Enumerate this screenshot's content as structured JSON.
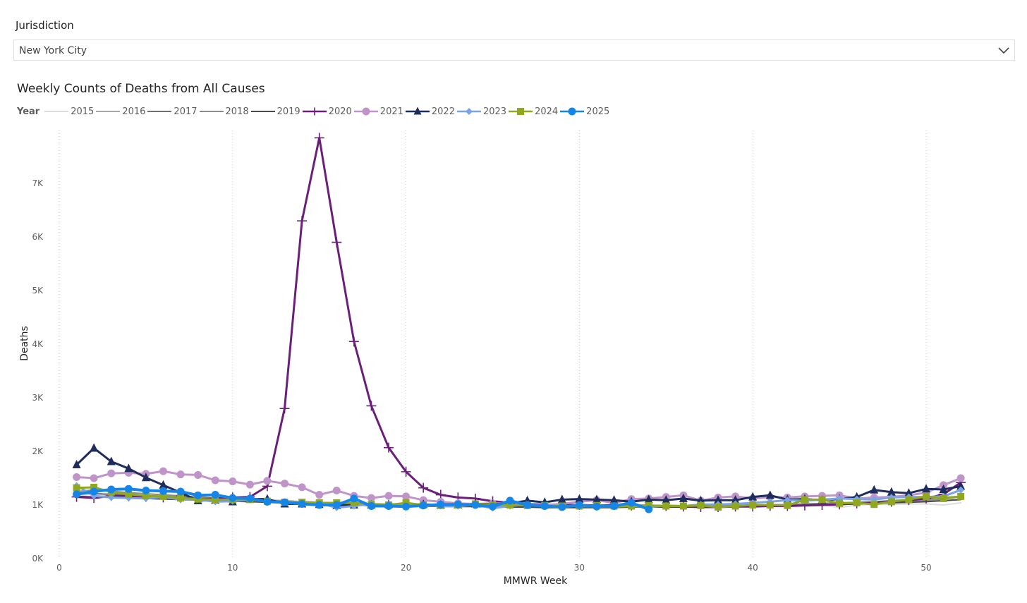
{
  "filter": {
    "label": "Jurisdiction",
    "value": "New York City",
    "chevron_icon": "chevron-down-icon"
  },
  "chart_data": {
    "type": "line",
    "title": "Weekly Counts of Deaths from All Causes",
    "legend_title": "Year",
    "legend_placement": "top-left",
    "xlabel": "MMWR Week",
    "ylabel": "Deaths",
    "xlim": [
      0,
      54
    ],
    "ylim": [
      0,
      8000
    ],
    "x_ticks": [
      0,
      10,
      20,
      30,
      40,
      50
    ],
    "x_tick_labels": [
      "0",
      "10",
      "20",
      "30",
      "40",
      "50"
    ],
    "y_ticks": [
      0,
      1000,
      2000,
      3000,
      4000,
      5000,
      6000,
      7000
    ],
    "y_tick_labels": [
      "0K",
      "1K",
      "2K",
      "3K",
      "4K",
      "5K",
      "6K",
      "7K"
    ],
    "vertical_gridlines": "dotted",
    "x": [
      1,
      2,
      3,
      4,
      5,
      6,
      7,
      8,
      9,
      10,
      11,
      12,
      13,
      14,
      15,
      16,
      17,
      18,
      19,
      20,
      21,
      22,
      23,
      24,
      25,
      26,
      27,
      28,
      29,
      30,
      31,
      32,
      33,
      34,
      35,
      36,
      37,
      38,
      39,
      40,
      41,
      42,
      43,
      44,
      45,
      46,
      47,
      48,
      49,
      50,
      51,
      52
    ],
    "series": [
      {
        "name": "2015",
        "color": "#dcdcdc",
        "marker": "none",
        "width": 2,
        "values": [
          1180,
          1200,
          1170,
          1160,
          1150,
          1140,
          1130,
          1110,
          1100,
          1090,
          1080,
          1060,
          1050,
          1040,
          1030,
          1020,
          1010,
          1000,
          990,
          990,
          980,
          980,
          970,
          970,
          960,
          960,
          960,
          950,
          950,
          950,
          950,
          950,
          960,
          960,
          960,
          960,
          970,
          970,
          970,
          980,
          980,
          990,
          990,
          1000,
          950,
          1000,
          1010,
          1010,
          1020,
          1020,
          1000,
          1040
        ]
      },
      {
        "name": "2016",
        "color": "#a8a8a8",
        "marker": "none",
        "width": 2,
        "values": [
          1200,
          1220,
          1190,
          1170,
          1160,
          1150,
          1140,
          1120,
          1110,
          1100,
          1090,
          1070,
          1060,
          1050,
          1040,
          1030,
          1020,
          1010,
          1000,
          1000,
          990,
          990,
          980,
          980,
          970,
          970,
          970,
          960,
          960,
          960,
          960,
          960,
          970,
          970,
          970,
          980,
          980,
          980,
          990,
          990,
          1000,
          1000,
          1010,
          1010,
          1020,
          1030,
          1040,
          1050,
          1060,
          1070,
          1080,
          1100
        ]
      },
      {
        "name": "2017",
        "color": "#707070",
        "marker": "none",
        "width": 2,
        "values": [
          1230,
          1210,
          1200,
          1190,
          1170,
          1160,
          1150,
          1130,
          1120,
          1110,
          1100,
          1080,
          1070,
          1060,
          1050,
          1040,
          1030,
          1020,
          1010,
          1010,
          1000,
          990,
          990,
          980,
          980,
          970,
          970,
          970,
          960,
          960,
          960,
          960,
          970,
          970,
          970,
          980,
          980,
          990,
          990,
          1000,
          1000,
          1010,
          1020,
          1030,
          1040,
          1050,
          1060,
          1080,
          1100,
          1120,
          1140,
          1160
        ]
      },
      {
        "name": "2018",
        "color": "#8c8c8c",
        "marker": "none",
        "width": 2,
        "values": [
          1250,
          1280,
          1260,
          1230,
          1210,
          1190,
          1170,
          1150,
          1130,
          1120,
          1100,
          1090,
          1080,
          1060,
          1050,
          1040,
          1030,
          1020,
          1010,
          1000,
          1000,
          990,
          990,
          980,
          980,
          970,
          970,
          970,
          970,
          960,
          960,
          960,
          970,
          970,
          970,
          970,
          980,
          980,
          990,
          990,
          1000,
          1010,
          1010,
          1020,
          1030,
          1040,
          1050,
          1060,
          1070,
          1090,
          1110,
          1150
        ]
      },
      {
        "name": "2019",
        "color": "#4a4a4a",
        "marker": "none",
        "width": 2,
        "values": [
          1160,
          1150,
          1140,
          1130,
          1120,
          1110,
          1100,
          1090,
          1080,
          1070,
          1060,
          1050,
          1040,
          1030,
          1020,
          1010,
          1000,
          1000,
          990,
          990,
          980,
          970,
          970,
          970,
          960,
          960,
          960,
          950,
          950,
          950,
          950,
          950,
          960,
          960,
          960,
          960,
          970,
          970,
          980,
          980,
          990,
          990,
          1000,
          1000,
          1010,
          1020,
          1030,
          1040,
          1050,
          1060,
          1080,
          1100
        ]
      },
      {
        "name": "2020",
        "color": "#6b1f7a",
        "marker": "plus",
        "width": 3,
        "values": [
          1150,
          1130,
          1170,
          1160,
          1150,
          1140,
          1130,
          1110,
          1120,
          1140,
          1150,
          1350,
          2800,
          6300,
          7850,
          5900,
          4050,
          2850,
          2070,
          1620,
          1320,
          1190,
          1140,
          1120,
          1070,
          1040,
          1020,
          1010,
          1000,
          1000,
          990,
          1000,
          990,
          990,
          980,
          970,
          960,
          960,
          970,
          970,
          980,
          980,
          990,
          1000,
          1010,
          1030,
          1040,
          1060,
          1090,
          1120,
          1200,
          1420
        ]
      },
      {
        "name": "2021",
        "color": "#bf94c9",
        "marker": "circle",
        "width": 3,
        "values": [
          1520,
          1500,
          1590,
          1600,
          1580,
          1630,
          1570,
          1560,
          1460,
          1440,
          1380,
          1450,
          1400,
          1330,
          1190,
          1270,
          1170,
          1130,
          1170,
          1160,
          1090,
          1060,
          1030,
          1020,
          1030,
          1030,
          1020,
          1000,
          1020,
          1060,
          1090,
          1040,
          1110,
          1120,
          1150,
          1180,
          1080,
          1140,
          1160,
          1120,
          1150,
          1140,
          1160,
          1170,
          1180,
          1120,
          1140,
          1150,
          1180,
          1230,
          1370,
          1500
        ]
      },
      {
        "name": "2022",
        "color": "#1e2d5c",
        "marker": "triangle",
        "width": 3,
        "values": [
          1750,
          2060,
          1810,
          1680,
          1510,
          1370,
          1230,
          1080,
          1090,
          1060,
          1110,
          1110,
          1020,
          1020,
          1010,
          990,
          1000,
          1000,
          1010,
          1020,
          1010,
          1000,
          1000,
          1020,
          1010,
          1030,
          1080,
          1050,
          1100,
          1110,
          1100,
          1090,
          1060,
          1100,
          1090,
          1120,
          1080,
          1090,
          1090,
          1150,
          1180,
          1100,
          1110,
          1090,
          1110,
          1150,
          1280,
          1240,
          1220,
          1300,
          1290,
          1350
        ]
      },
      {
        "name": "2023",
        "color": "#7ba4e8",
        "marker": "diamond",
        "width": 3,
        "values": [
          1360,
          1170,
          1140,
          1130,
          1120,
          1150,
          1100,
          1100,
          1060,
          1070,
          1100,
          1060,
          1060,
          1050,
          1030,
          950,
          980,
          1020,
          1010,
          990,
          1000,
          980,
          980,
          1000,
          940,
          980,
          1010,
          990,
          980,
          980,
          970,
          970,
          980,
          960,
          990,
          980,
          1010,
          1010,
          1020,
          1040,
          1060,
          1090,
          1080,
          1100,
          1120,
          1110,
          1100,
          1140,
          1150,
          1150,
          1160,
          1280
        ]
      },
      {
        "name": "2024",
        "color": "#8fa820",
        "marker": "square",
        "width": 3,
        "values": [
          1320,
          1330,
          1240,
          1200,
          1170,
          1160,
          1130,
          1110,
          1100,
          1100,
          1100,
          1070,
          1050,
          1050,
          1040,
          1040,
          1040,
          1010,
          1000,
          1040,
          1000,
          990,
          1000,
          1020,
          1000,
          1000,
          990,
          990,
          980,
          980,
          990,
          980,
          980,
          990,
          980,
          980,
          990,
          960,
          980,
          1000,
          1000,
          990,
          1100,
          1100,
          1030,
          1040,
          1010,
          1060,
          1100,
          1160,
          1120,
          1160
        ]
      },
      {
        "name": "2025",
        "color": "#1585e8",
        "marker": "circle",
        "width": 4,
        "values": [
          1200,
          1250,
          1290,
          1300,
          1270,
          1260,
          1250,
          1180,
          1190,
          1130,
          1120,
          1060,
          1050,
          1020,
          1000,
          1000,
          1120,
          980,
          980,
          970,
          990,
          1010,
          1010,
          1000,
          970,
          1080,
          1000,
          980,
          960,
          1000,
          970,
          980,
          1040,
          920,
          null,
          null,
          null,
          null,
          null,
          null,
          null,
          null,
          null,
          null,
          null,
          null,
          null,
          null,
          null,
          null,
          null,
          null
        ]
      }
    ]
  }
}
